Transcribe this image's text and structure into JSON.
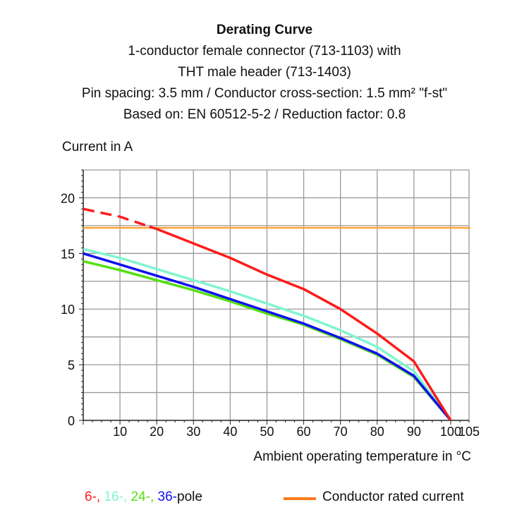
{
  "chart_data": {
    "type": "line",
    "title": "Derating Curve",
    "subtitle": [
      "1-conductor female connector (713-1103) with",
      "THT male header (713-1403)",
      "Pin spacing: 3.5 mm / Conductor cross-section: 1.5 mm² \"f-st\"",
      "Based on: EN 60512-5-2 / Reduction factor: 0.8"
    ],
    "ylabel": "Current in A",
    "xlabel": "Ambient operating temperature in °C",
    "xlim": [
      0,
      105
    ],
    "ylim": [
      0,
      22.5
    ],
    "xticks": [
      10,
      20,
      30,
      40,
      50,
      60,
      70,
      80,
      90,
      100,
      105
    ],
    "yticks": [
      0,
      5,
      10,
      15,
      20
    ],
    "grid": true,
    "x": [
      0,
      10,
      20,
      30,
      40,
      50,
      60,
      70,
      80,
      90,
      100
    ],
    "series": [
      {
        "name": "6-",
        "color": "#ff1a1a",
        "values": [
          19.0,
          18.3,
          17.2,
          15.9,
          14.6,
          13.1,
          11.8,
          10.0,
          7.8,
          5.3,
          0
        ],
        "dashed_until_x": 18
      },
      {
        "name": "16-",
        "color": "#80f5d0",
        "values": [
          15.4,
          14.6,
          13.6,
          12.6,
          11.6,
          10.5,
          9.4,
          8.1,
          6.6,
          4.4,
          0
        ]
      },
      {
        "name": "24-",
        "color": "#55e010",
        "values": [
          14.3,
          13.5,
          12.6,
          11.7,
          10.7,
          9.6,
          8.6,
          7.3,
          5.9,
          3.9,
          0
        ]
      },
      {
        "name": "36-",
        "color": "#1010f0",
        "values": [
          15.0,
          14.0,
          13.0,
          12.0,
          10.9,
          9.8,
          8.7,
          7.4,
          6.0,
          4.0,
          0
        ]
      }
    ],
    "reference_line": {
      "name": "Conductor rated current",
      "value": 17.3,
      "color": "#ffa533"
    },
    "legend": {
      "poles": [
        "6-,",
        "16-,",
        "24-,",
        "36-"
      ],
      "pole_suffix": "pole",
      "rated": "Conductor rated current",
      "rated_color": "#ff7a1a"
    }
  }
}
